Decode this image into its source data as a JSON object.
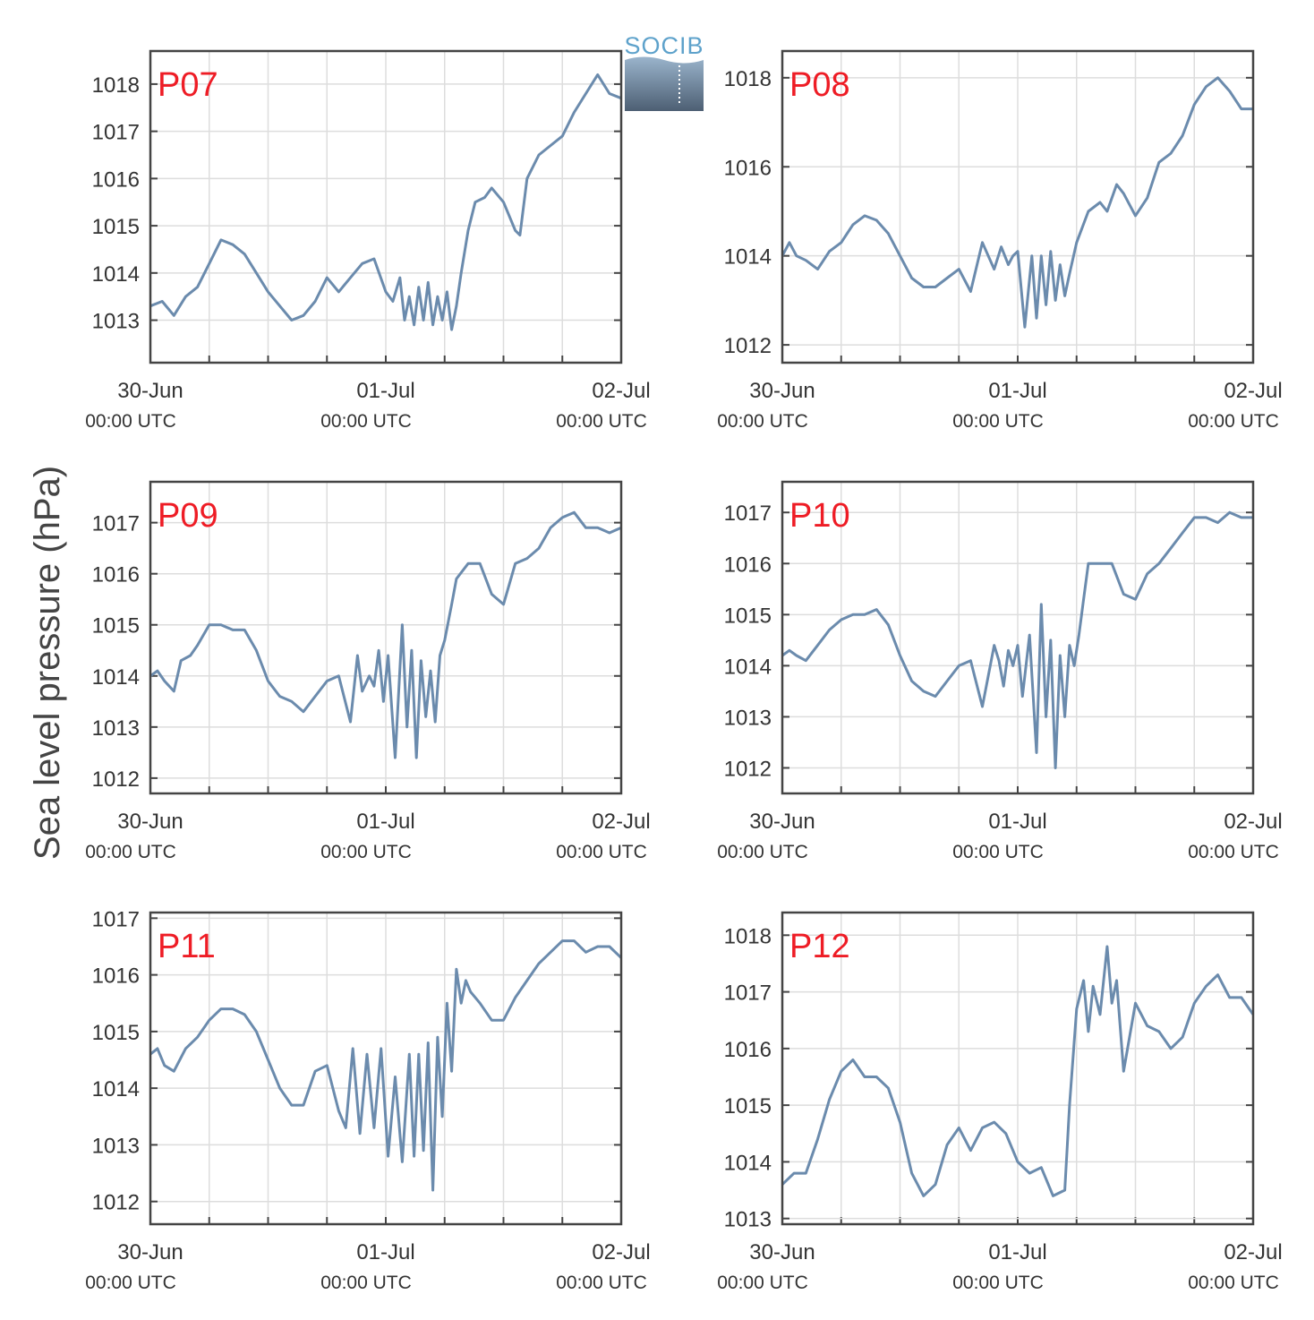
{
  "ylabel": "Sea level pressure (hPa)",
  "logo_text": "SOCIB",
  "colors": {
    "line": "#6b8bad",
    "label": "#ee1c25",
    "grid": "#dddddd",
    "axis": "#444444"
  },
  "x_ticks": [
    {
      "day": 0,
      "date": "30-Jun",
      "time": "00:00 UTC"
    },
    {
      "day": 1,
      "date": "01-Jul",
      "time": "00:00 UTC"
    },
    {
      "day": 2,
      "date": "02-Jul",
      "time": "00:00 UTC"
    }
  ],
  "chart_data": [
    {
      "type": "line",
      "title": "P07",
      "xlim": [
        0,
        2
      ],
      "ylim": [
        1012.1,
        1018.7
      ],
      "yticks": [
        1013,
        1014,
        1015,
        1016,
        1017,
        1018
      ],
      "x": [
        0,
        0.05,
        0.1,
        0.15,
        0.2,
        0.25,
        0.3,
        0.35,
        0.4,
        0.45,
        0.5,
        0.55,
        0.6,
        0.65,
        0.7,
        0.75,
        0.8,
        0.85,
        0.9,
        0.95,
        1.0,
        1.03,
        1.06,
        1.08,
        1.1,
        1.12,
        1.14,
        1.16,
        1.18,
        1.2,
        1.22,
        1.24,
        1.26,
        1.28,
        1.3,
        1.32,
        1.35,
        1.38,
        1.42,
        1.45,
        1.5,
        1.55,
        1.57,
        1.6,
        1.65,
        1.7,
        1.75,
        1.8,
        1.85,
        1.9,
        1.95,
        2.0
      ],
      "y": [
        1013.3,
        1013.4,
        1013.1,
        1013.5,
        1013.7,
        1014.2,
        1014.7,
        1014.6,
        1014.4,
        1014.0,
        1013.6,
        1013.3,
        1013.0,
        1013.1,
        1013.4,
        1013.9,
        1013.6,
        1013.9,
        1014.2,
        1014.3,
        1013.6,
        1013.4,
        1013.9,
        1013.0,
        1013.5,
        1012.9,
        1013.7,
        1013.0,
        1013.8,
        1012.9,
        1013.5,
        1013.0,
        1013.6,
        1012.8,
        1013.3,
        1014.0,
        1014.9,
        1015.5,
        1015.6,
        1015.8,
        1015.5,
        1014.9,
        1014.8,
        1016.0,
        1016.5,
        1016.7,
        1016.9,
        1017.4,
        1017.8,
        1018.2,
        1017.8,
        1017.7
      ]
    },
    {
      "type": "line",
      "title": "P08",
      "xlim": [
        0,
        2
      ],
      "ylim": [
        1011.6,
        1018.6
      ],
      "yticks": [
        1012,
        1014,
        1016,
        1018
      ],
      "x": [
        0,
        0.03,
        0.06,
        0.1,
        0.15,
        0.2,
        0.25,
        0.3,
        0.35,
        0.4,
        0.45,
        0.5,
        0.55,
        0.6,
        0.65,
        0.7,
        0.75,
        0.8,
        0.85,
        0.9,
        0.93,
        0.96,
        0.98,
        1.0,
        1.03,
        1.06,
        1.08,
        1.1,
        1.12,
        1.14,
        1.16,
        1.18,
        1.2,
        1.22,
        1.25,
        1.3,
        1.35,
        1.38,
        1.42,
        1.45,
        1.5,
        1.55,
        1.6,
        1.65,
        1.7,
        1.75,
        1.8,
        1.85,
        1.9,
        1.95,
        2.0
      ],
      "y": [
        1014.0,
        1014.3,
        1014.0,
        1013.9,
        1013.7,
        1014.1,
        1014.3,
        1014.7,
        1014.9,
        1014.8,
        1014.5,
        1014.0,
        1013.5,
        1013.3,
        1013.3,
        1013.5,
        1013.7,
        1013.2,
        1014.3,
        1013.7,
        1014.2,
        1013.8,
        1014.0,
        1014.1,
        1012.4,
        1014.0,
        1012.6,
        1014.0,
        1012.9,
        1014.1,
        1013.0,
        1013.8,
        1013.1,
        1013.6,
        1014.3,
        1015.0,
        1015.2,
        1015.0,
        1015.6,
        1015.4,
        1014.9,
        1015.3,
        1016.1,
        1016.3,
        1016.7,
        1017.4,
        1017.8,
        1018.0,
        1017.7,
        1017.3,
        1017.3
      ]
    },
    {
      "type": "line",
      "title": "P09",
      "xlim": [
        0,
        2
      ],
      "ylim": [
        1011.7,
        1017.8
      ],
      "yticks": [
        1012,
        1013,
        1014,
        1015,
        1016,
        1017
      ],
      "x": [
        0,
        0.03,
        0.06,
        0.1,
        0.13,
        0.17,
        0.2,
        0.25,
        0.3,
        0.35,
        0.4,
        0.45,
        0.5,
        0.55,
        0.6,
        0.65,
        0.7,
        0.75,
        0.8,
        0.85,
        0.88,
        0.9,
        0.93,
        0.95,
        0.97,
        0.99,
        1.01,
        1.04,
        1.07,
        1.09,
        1.11,
        1.13,
        1.15,
        1.17,
        1.19,
        1.21,
        1.23,
        1.25,
        1.28,
        1.3,
        1.35,
        1.4,
        1.45,
        1.5,
        1.55,
        1.6,
        1.65,
        1.7,
        1.75,
        1.8,
        1.85,
        1.9,
        1.95,
        2.0
      ],
      "y": [
        1014.0,
        1014.1,
        1013.9,
        1013.7,
        1014.3,
        1014.4,
        1014.6,
        1015.0,
        1015.0,
        1014.9,
        1014.9,
        1014.5,
        1013.9,
        1013.6,
        1013.5,
        1013.3,
        1013.6,
        1013.9,
        1014.0,
        1013.1,
        1014.4,
        1013.7,
        1014.0,
        1013.8,
        1014.5,
        1013.5,
        1014.4,
        1012.4,
        1015.0,
        1013.0,
        1014.5,
        1012.4,
        1014.3,
        1013.2,
        1014.1,
        1013.1,
        1014.4,
        1014.7,
        1015.4,
        1015.9,
        1016.2,
        1016.2,
        1015.6,
        1015.4,
        1016.2,
        1016.3,
        1016.5,
        1016.9,
        1017.1,
        1017.2,
        1016.9,
        1016.9,
        1016.8,
        1016.9
      ]
    },
    {
      "type": "line",
      "title": "P10",
      "xlim": [
        0,
        2
      ],
      "ylim": [
        1011.5,
        1017.6
      ],
      "yticks": [
        1012,
        1013,
        1014,
        1015,
        1016,
        1017
      ],
      "x": [
        0,
        0.03,
        0.06,
        0.1,
        0.15,
        0.2,
        0.25,
        0.3,
        0.35,
        0.4,
        0.45,
        0.5,
        0.55,
        0.6,
        0.65,
        0.7,
        0.75,
        0.8,
        0.85,
        0.9,
        0.92,
        0.94,
        0.96,
        0.98,
        1.0,
        1.02,
        1.05,
        1.08,
        1.1,
        1.12,
        1.14,
        1.16,
        1.18,
        1.2,
        1.22,
        1.24,
        1.26,
        1.28,
        1.3,
        1.35,
        1.4,
        1.45,
        1.5,
        1.55,
        1.6,
        1.65,
        1.7,
        1.75,
        1.8,
        1.85,
        1.9,
        1.95,
        2.0
      ],
      "y": [
        1014.2,
        1014.3,
        1014.2,
        1014.1,
        1014.4,
        1014.7,
        1014.9,
        1015.0,
        1015.0,
        1015.1,
        1014.8,
        1014.2,
        1013.7,
        1013.5,
        1013.4,
        1013.7,
        1014.0,
        1014.1,
        1013.2,
        1014.4,
        1014.1,
        1013.6,
        1014.3,
        1014.0,
        1014.4,
        1013.4,
        1014.6,
        1012.3,
        1015.2,
        1013.0,
        1014.5,
        1012.0,
        1014.2,
        1013.0,
        1014.4,
        1014.0,
        1014.6,
        1015.3,
        1016.0,
        1016.0,
        1016.0,
        1015.4,
        1015.3,
        1015.8,
        1016.0,
        1016.3,
        1016.6,
        1016.9,
        1016.9,
        1016.8,
        1017.0,
        1016.9,
        1016.9
      ]
    },
    {
      "type": "line",
      "title": "P11",
      "xlim": [
        0,
        2
      ],
      "ylim": [
        1011.6,
        1017.1
      ],
      "yticks": [
        1012,
        1013,
        1014,
        1015,
        1016,
        1017
      ],
      "x": [
        0,
        0.03,
        0.06,
        0.1,
        0.15,
        0.2,
        0.25,
        0.3,
        0.35,
        0.4,
        0.45,
        0.5,
        0.55,
        0.6,
        0.65,
        0.7,
        0.75,
        0.8,
        0.83,
        0.86,
        0.89,
        0.92,
        0.95,
        0.98,
        1.01,
        1.04,
        1.07,
        1.1,
        1.12,
        1.14,
        1.16,
        1.18,
        1.2,
        1.22,
        1.24,
        1.26,
        1.28,
        1.3,
        1.32,
        1.34,
        1.36,
        1.4,
        1.45,
        1.5,
        1.55,
        1.6,
        1.65,
        1.7,
        1.75,
        1.8,
        1.85,
        1.9,
        1.95,
        2.0
      ],
      "y": [
        1014.6,
        1014.7,
        1014.4,
        1014.3,
        1014.7,
        1014.9,
        1015.2,
        1015.4,
        1015.4,
        1015.3,
        1015.0,
        1014.5,
        1014.0,
        1013.7,
        1013.7,
        1014.3,
        1014.4,
        1013.6,
        1013.3,
        1014.7,
        1013.2,
        1014.6,
        1013.3,
        1014.7,
        1012.8,
        1014.2,
        1012.7,
        1014.6,
        1012.8,
        1014.6,
        1012.9,
        1014.8,
        1012.2,
        1014.9,
        1013.5,
        1015.5,
        1014.3,
        1016.1,
        1015.5,
        1015.9,
        1015.7,
        1015.5,
        1015.2,
        1015.2,
        1015.6,
        1015.9,
        1016.2,
        1016.4,
        1016.6,
        1016.6,
        1016.4,
        1016.5,
        1016.5,
        1016.3
      ]
    },
    {
      "type": "line",
      "title": "P12",
      "xlim": [
        0,
        2
      ],
      "ylim": [
        1012.9,
        1018.4
      ],
      "yticks": [
        1013,
        1014,
        1015,
        1016,
        1017,
        1018
      ],
      "x": [
        0,
        0.05,
        0.1,
        0.15,
        0.2,
        0.25,
        0.3,
        0.35,
        0.4,
        0.45,
        0.5,
        0.55,
        0.6,
        0.65,
        0.7,
        0.75,
        0.8,
        0.85,
        0.9,
        0.95,
        1.0,
        1.05,
        1.1,
        1.15,
        1.2,
        1.22,
        1.25,
        1.28,
        1.3,
        1.32,
        1.35,
        1.38,
        1.4,
        1.42,
        1.45,
        1.5,
        1.55,
        1.6,
        1.65,
        1.7,
        1.75,
        1.8,
        1.85,
        1.9,
        1.95,
        2.0
      ],
      "y": [
        1013.6,
        1013.8,
        1013.8,
        1014.4,
        1015.1,
        1015.6,
        1015.8,
        1015.5,
        1015.5,
        1015.3,
        1014.7,
        1013.8,
        1013.4,
        1013.6,
        1014.3,
        1014.6,
        1014.2,
        1014.6,
        1014.7,
        1014.5,
        1014.0,
        1013.8,
        1013.9,
        1013.4,
        1013.5,
        1015.0,
        1016.7,
        1017.2,
        1016.3,
        1017.1,
        1016.6,
        1017.8,
        1016.8,
        1017.2,
        1015.6,
        1016.8,
        1016.4,
        1016.3,
        1016.0,
        1016.2,
        1016.8,
        1017.1,
        1017.3,
        1016.9,
        1016.9,
        1016.6
      ]
    }
  ]
}
